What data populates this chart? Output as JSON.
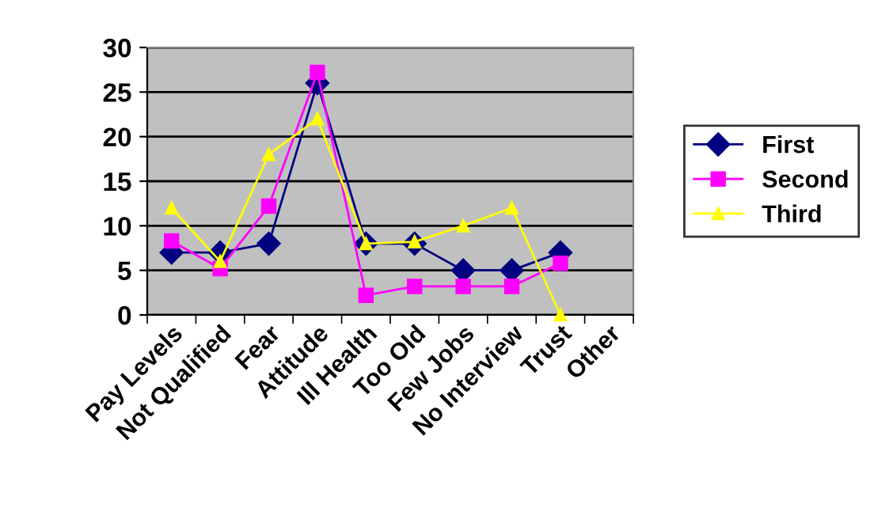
{
  "chart_data": {
    "type": "line",
    "categories": [
      "Pay Levels",
      "Not Qualified",
      "Fear",
      "Attitude",
      "Ill Health",
      "Too Old",
      "Few Jobs",
      "No Interview",
      "Trust",
      "Other"
    ],
    "series": [
      {
        "name": "First",
        "color": "#000080",
        "marker": "diamond",
        "values": [
          7,
          7,
          8,
          26,
          8,
          8,
          5,
          5,
          7,
          null
        ]
      },
      {
        "name": "Second",
        "color": "#ff00ff",
        "marker": "square",
        "values": [
          8.3,
          5.2,
          12.2,
          27.2,
          2.2,
          3.2,
          3.2,
          3.2,
          5.8,
          null
        ]
      },
      {
        "name": "Third",
        "color": "#ffff00",
        "marker": "triangle",
        "values": [
          12,
          6,
          18,
          22,
          8,
          8.2,
          10,
          12,
          0,
          null
        ]
      }
    ],
    "ylim": [
      0,
      30
    ],
    "yticks": [
      0,
      5,
      10,
      15,
      20,
      25,
      30
    ],
    "grid": "y",
    "legend": "right",
    "line_style": "solid"
  }
}
